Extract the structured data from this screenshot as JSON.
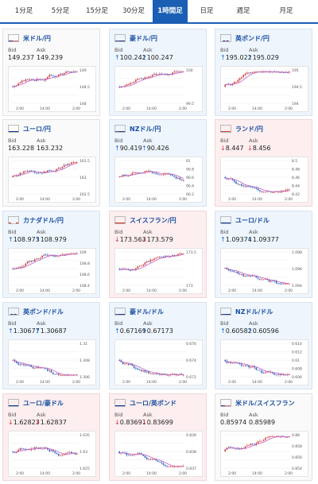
{
  "tabs": [
    "1分足",
    "5分足",
    "15分足",
    "30分足",
    "1時間足",
    "日足",
    "週足",
    "月足"
  ],
  "active_tab": "1時間足",
  "bid_label": "Bid",
  "ask_label": "Ask",
  "colors": {
    "up": "#1a6bd0",
    "down": "#d23a3a",
    "accent": "#1a5fb4",
    "candle_up": "#d23a3a",
    "candle_down": "#2a5fc0",
    "ma": "#c060c0"
  },
  "pairs": [
    {
      "title": "米ドル/円",
      "flag": "us",
      "bid": "149.237",
      "ask": "149.239",
      "dir": "none",
      "trend": "up",
      "ticks": [
        "149",
        "148.5",
        "148"
      ],
      "times": [
        "2:00",
        "14:00",
        "2:00"
      ]
    },
    {
      "title": "豪ドル/円",
      "flag": "au",
      "bid": "100.242",
      "ask": "100.247",
      "dir": "up",
      "trend": "up",
      "ticks": [
        "100",
        "99.5"
      ],
      "times": [
        "2:00",
        "14:00",
        "2:00"
      ]
    },
    {
      "title": "英ポンド/円",
      "flag": "gb",
      "bid": "195.022",
      "ask": "195.029",
      "dir": "up",
      "trend": "up",
      "ticks": [
        "195",
        "194.5",
        "194"
      ],
      "times": [
        "2:00",
        "14:00",
        "2:00"
      ]
    },
    {
      "title": "ユーロ/円",
      "flag": "eu",
      "bid": "163.228",
      "ask": "163.232",
      "dir": "none",
      "trend": "up",
      "ticks": [
        "163.5",
        "163",
        "162.5"
      ],
      "times": [
        "2:00",
        "14:00",
        "2:00"
      ]
    },
    {
      "title": "NZドル/円",
      "flag": "nz",
      "bid": "90.419",
      "ask": "90.426",
      "dir": "up",
      "trend": "mixed",
      "ticks": [
        "91",
        "90.8",
        "90.6",
        "90.4",
        "90.2"
      ],
      "times": [
        "2:00",
        "14:00",
        "2:00"
      ]
    },
    {
      "title": "ランド/円",
      "flag": "za",
      "bid": "8.447",
      "ask": "8.456",
      "dir": "down",
      "trend": "down",
      "ticks": [
        "8.5",
        "8.48",
        "8.46",
        "8.44",
        "8.42"
      ],
      "times": [
        "2:00",
        "14:00",
        "2:00"
      ]
    },
    {
      "title": "カナダドル/円",
      "flag": "ca",
      "bid": "108.973",
      "ask": "108.979",
      "dir": "up",
      "trend": "up",
      "ticks": [
        "109",
        "108.8",
        "108.6",
        "108.4"
      ],
      "times": [
        "2:00",
        "14:00",
        "2:00"
      ]
    },
    {
      "title": "スイスフラン/円",
      "flag": "ch",
      "bid": "173.563",
      "ask": "173.579",
      "dir": "down",
      "trend": "up",
      "ticks": [
        "173.5",
        "173"
      ],
      "times": [
        "2:00",
        "14:00",
        "2:00"
      ]
    },
    {
      "title": "ユーロ/ドル",
      "flag": "eu",
      "bid": "1.09374",
      "ask": "1.09377",
      "dir": "up",
      "trend": "down",
      "ticks": [
        "1.098",
        "1.096",
        "1.094"
      ],
      "times": [
        "2:00",
        "14:00",
        "2:00"
      ]
    },
    {
      "title": "英ポンド/ドル",
      "flag": "gb",
      "bid": "1.30677",
      "ask": "1.30687",
      "dir": "up",
      "trend": "down",
      "ticks": [
        "1.31",
        "1.308",
        "1.306"
      ],
      "times": [
        "2:00",
        "14:00",
        "2:00"
      ]
    },
    {
      "title": "豪ドル/ドル",
      "flag": "au",
      "bid": "0.67169",
      "ask": "0.67173",
      "dir": "up",
      "trend": "down",
      "ticks": [
        "0.676",
        "0.674",
        "0.672"
      ],
      "times": [
        "2:00",
        "14:00",
        "2:00"
      ]
    },
    {
      "title": "NZドル/ドル",
      "flag": "nz",
      "bid": "0.60582",
      "ask": "0.60596",
      "dir": "up",
      "trend": "down",
      "ticks": [
        "0.614",
        "0.612",
        "0.61",
        "0.608",
        "0.606"
      ],
      "times": [
        "2:00",
        "14:00",
        "2:00"
      ]
    },
    {
      "title": "ユーロ/豪ドル",
      "flag": "eu",
      "bid": "1.62823",
      "ask": "1.62837",
      "dir": "down",
      "trend": "mixed",
      "ticks": [
        "1.635",
        "1.63",
        "1.625"
      ],
      "times": [
        "2:00",
        "14:00",
        "2:00"
      ]
    },
    {
      "title": "ユーロ/英ポンド",
      "flag": "eu",
      "bid": "0.83691",
      "ask": "0.83699",
      "dir": "down",
      "trend": "down",
      "ticks": [
        "0.839",
        "0.838",
        "0.837"
      ],
      "times": [
        "2:00",
        "14:00",
        "2:00"
      ]
    },
    {
      "title": "米ドル/スイスフラン",
      "flag": "us",
      "bid": "0.85974",
      "ask": "0.85989",
      "dir": "none",
      "trend": "up",
      "ticks": [
        "0.86",
        "0.858",
        "0.856",
        "0.854"
      ],
      "times": [
        "2:00",
        "14:00",
        "2:00"
      ]
    }
  ]
}
